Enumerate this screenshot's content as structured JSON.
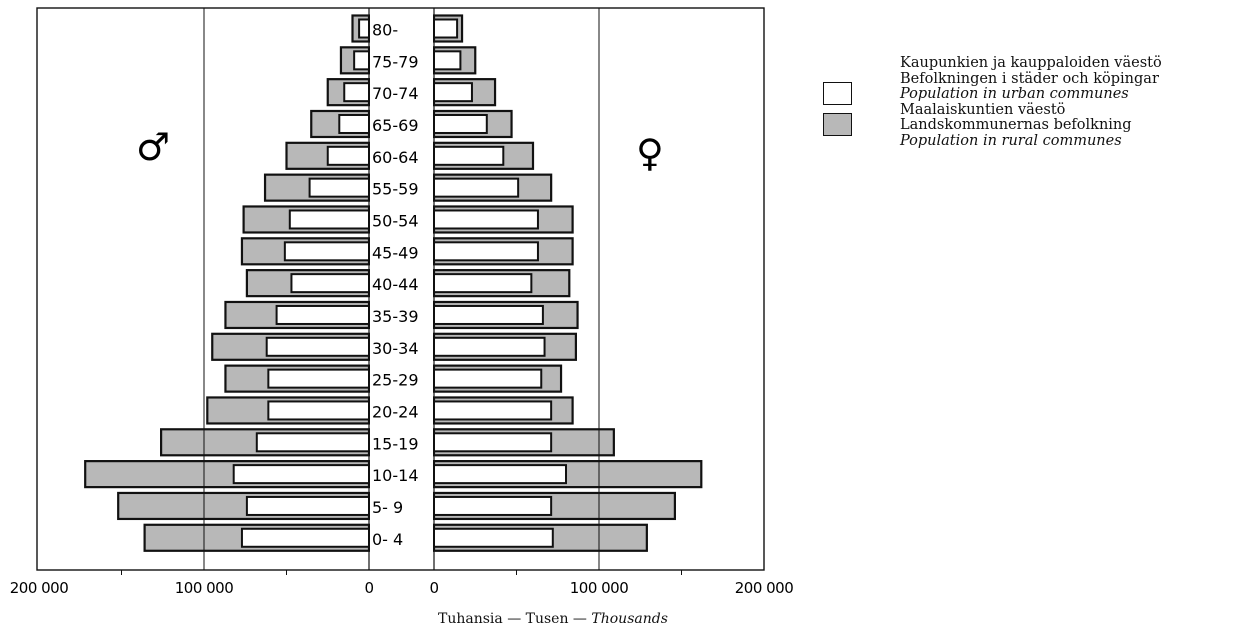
{
  "chart_data": {
    "type": "bar",
    "subtype": "population-pyramid",
    "symbols": {
      "male": "♂",
      "female": "♀"
    },
    "categories": [
      "80-",
      "75-79",
      "70-74",
      "65-69",
      "60-64",
      "55-59",
      "50-54",
      "45-49",
      "40-44",
      "35-39",
      "30-34",
      "25-29",
      "20-24",
      "15-19",
      "10-14",
      "5- 9",
      "0- 4"
    ],
    "series": [
      {
        "name_fi": "Kaupunkien ja kauppaloiden väestö",
        "name_sv": "Befolkningen i städer och köpingar",
        "name_en": "Population in urban communes",
        "fill": "#ffffff",
        "male": [
          6,
          9,
          15,
          18,
          25,
          36,
          48,
          51,
          47,
          56,
          62,
          61,
          61,
          68,
          82,
          74,
          77
        ],
        "female": [
          14,
          16,
          23,
          32,
          42,
          51,
          63,
          63,
          59,
          66,
          67,
          65,
          71,
          71,
          80,
          71,
          72
        ]
      },
      {
        "name_fi": "Maalaiskuntien väestö",
        "name_sv": "Landskommunernas befolkning",
        "name_en": "Population in rural communes",
        "fill": "#b8b8b8",
        "male": [
          10,
          17,
          25,
          35,
          50,
          63,
          76,
          77,
          74,
          87,
          95,
          87,
          98,
          126,
          172,
          152,
          136
        ],
        "female": [
          17,
          25,
          37,
          47,
          60,
          71,
          84,
          84,
          82,
          87,
          86,
          77,
          84,
          109,
          162,
          146,
          129
        ]
      }
    ],
    "xticks_left": [
      "200 000",
      "100 000",
      "0"
    ],
    "xticks_right": [
      "0",
      "100 000",
      "200 000"
    ],
    "xlim": [
      0,
      200000
    ],
    "units": "thousands",
    "xlabel_plain": "Tuhansia — Tusen — ",
    "xlabel_italic": "Thousands",
    "gridlines_at": [
      100000
    ]
  },
  "legend": {
    "urban_lines": [
      "Kaupunkien ja kauppaloiden väestö",
      "Befolkningen i städer och köpingar",
      "Population in urban communes"
    ],
    "rural_lines": [
      "Maalaiskuntien väestö",
      "Landskommunernas befolkning",
      "Population in rural communes"
    ],
    "urban_color": "#ffffff",
    "rural_color": "#b8b8b8"
  }
}
